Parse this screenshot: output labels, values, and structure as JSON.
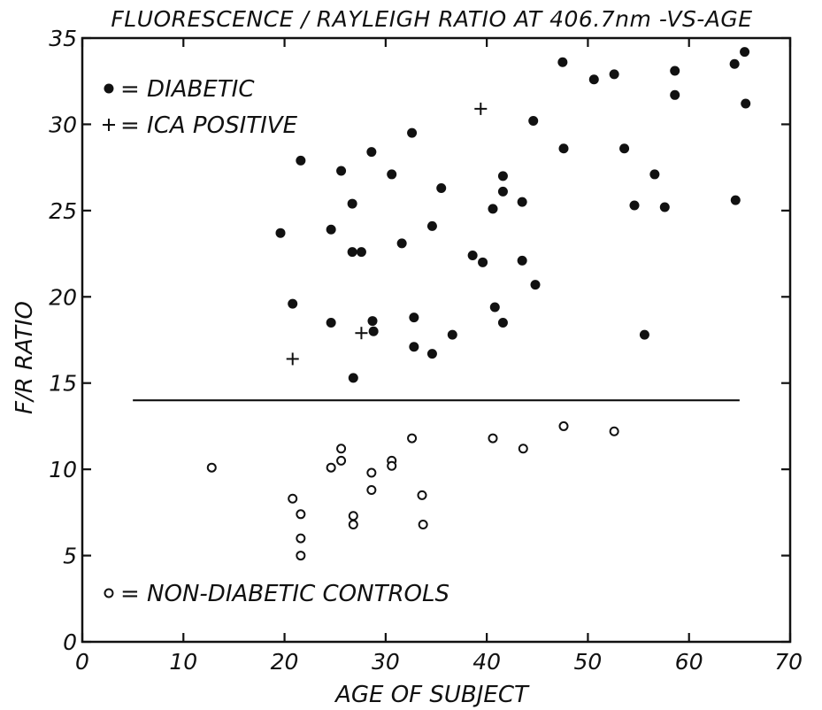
{
  "chart_data": {
    "type": "scatter",
    "title": "FLUORESCENCE / RAYLEIGH RATIO AT 406.7nm -VS-AGE",
    "xlabel": "AGE OF SUBJECT",
    "ylabel": "F/R RATIO",
    "xlim": [
      0,
      70
    ],
    "ylim": [
      0,
      35
    ],
    "x_ticks": [
      0,
      10,
      20,
      30,
      40,
      50,
      60,
      70
    ],
    "y_ticks": [
      0,
      5,
      10,
      15,
      20,
      25,
      30,
      35
    ],
    "grid": false,
    "legend": {
      "placement": "upper-left and lower-left",
      "diabetic": "= DIABETIC",
      "ica": "= ICA POSITIVE",
      "controls": "= NON-DIABETIC CONTROLS"
    },
    "threshold": {
      "y": 14,
      "x_from": 5,
      "x_to": 65
    },
    "series": [
      {
        "name": "DIABETIC",
        "marker": "filled-circle",
        "points": [
          [
            19.6,
            23.7
          ],
          [
            20.8,
            19.6
          ],
          [
            21.6,
            27.9
          ],
          [
            24.6,
            18.5
          ],
          [
            24.6,
            23.9
          ],
          [
            25.6,
            27.3
          ],
          [
            26.7,
            25.4
          ],
          [
            26.7,
            22.6
          ],
          [
            26.8,
            15.3
          ],
          [
            27.6,
            22.6
          ],
          [
            28.6,
            28.4
          ],
          [
            28.7,
            18.6
          ],
          [
            28.8,
            18.0
          ],
          [
            30.6,
            27.1
          ],
          [
            31.6,
            23.1
          ],
          [
            32.6,
            29.5
          ],
          [
            32.8,
            18.8
          ],
          [
            32.8,
            17.1
          ],
          [
            34.6,
            16.7
          ],
          [
            34.6,
            24.1
          ],
          [
            35.5,
            26.3
          ],
          [
            36.6,
            17.8
          ],
          [
            38.6,
            22.4
          ],
          [
            39.6,
            22.0
          ],
          [
            40.6,
            25.1
          ],
          [
            40.8,
            19.4
          ],
          [
            41.6,
            26.1
          ],
          [
            41.6,
            27.0
          ],
          [
            41.6,
            18.5
          ],
          [
            43.5,
            25.5
          ],
          [
            43.5,
            22.1
          ],
          [
            44.6,
            30.2
          ],
          [
            44.8,
            20.7
          ],
          [
            47.5,
            33.6
          ],
          [
            47.6,
            28.6
          ],
          [
            50.6,
            32.6
          ],
          [
            52.6,
            32.9
          ],
          [
            53.6,
            28.6
          ],
          [
            54.6,
            25.3
          ],
          [
            55.6,
            17.8
          ],
          [
            56.6,
            27.1
          ],
          [
            57.6,
            25.2
          ],
          [
            58.6,
            33.1
          ],
          [
            58.6,
            31.7
          ],
          [
            64.5,
            33.5
          ],
          [
            64.6,
            25.6
          ],
          [
            65.5,
            34.2
          ],
          [
            65.6,
            31.2
          ]
        ]
      },
      {
        "name": "ICA POSITIVE",
        "marker": "plus",
        "points": [
          [
            20.8,
            16.4
          ],
          [
            27.6,
            17.9
          ],
          [
            39.4,
            30.9
          ]
        ]
      },
      {
        "name": "NON-DIABETIC CONTROLS",
        "marker": "open-circle",
        "points": [
          [
            12.8,
            10.1
          ],
          [
            20.8,
            8.3
          ],
          [
            21.6,
            7.4
          ],
          [
            21.6,
            6.0
          ],
          [
            21.6,
            5.0
          ],
          [
            24.6,
            10.1
          ],
          [
            25.6,
            10.5
          ],
          [
            25.6,
            11.2
          ],
          [
            26.8,
            7.3
          ],
          [
            26.8,
            6.8
          ],
          [
            28.6,
            9.8
          ],
          [
            28.6,
            8.8
          ],
          [
            30.6,
            10.5
          ],
          [
            30.6,
            10.2
          ],
          [
            32.6,
            11.8
          ],
          [
            33.6,
            8.5
          ],
          [
            33.7,
            6.8
          ],
          [
            40.6,
            11.8
          ],
          [
            43.6,
            11.2
          ],
          [
            47.6,
            12.5
          ],
          [
            52.6,
            12.2
          ]
        ]
      }
    ]
  }
}
